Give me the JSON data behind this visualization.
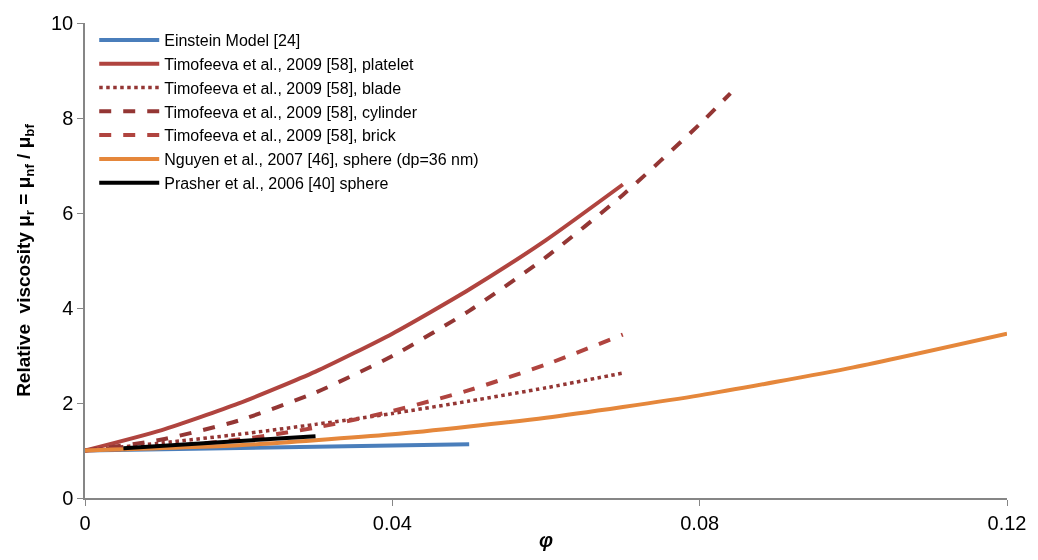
{
  "chart_data": {
    "type": "line",
    "xlabel": "φ",
    "ylabel": "Relative  viscosity μ$_{r}$ = μ$_{nf}$ / μ$_{bf}$",
    "xlim": [
      0,
      0.12
    ],
    "xticks": [
      0,
      0.04,
      0.08,
      0.12
    ],
    "ylim": [
      0,
      10
    ],
    "yticks": [
      0,
      2,
      4,
      6,
      8,
      10
    ],
    "legend": "top left",
    "marker": "none",
    "series": [
      {
        "name": "Einstein Model [24]",
        "color": "#4a7ebb",
        "line_style": "solid",
        "x": [
          0,
          0.05
        ],
        "values": [
          1,
          1.13
        ]
      },
      {
        "name": "Timofeeva et al., 2009 [58], platelet",
        "color": "#b0443f",
        "line_style": "solid",
        "x": [
          0,
          0.01,
          0.02,
          0.03,
          0.04,
          0.05,
          0.06,
          0.07
        ],
        "values": [
          1,
          1.43,
          1.99,
          2.66,
          3.46,
          4.39,
          5.43,
          6.6
        ]
      },
      {
        "name": "Timofeeva et al., 2009 [58], blade",
        "color": "#943634",
        "line_style": "dotted",
        "x": [
          0,
          0.01,
          0.02,
          0.03,
          0.04,
          0.05,
          0.06,
          0.07
        ],
        "values": [
          1,
          1.16,
          1.34,
          1.55,
          1.78,
          2.04,
          2.32,
          2.63
        ]
      },
      {
        "name": "Timofeeva et al., 2009 [58], cylinder",
        "color": "#943634",
        "line_style": "dashed",
        "x": [
          0,
          0.01,
          0.02,
          0.03,
          0.04,
          0.05,
          0.06,
          0.07,
          0.08,
          0.084
        ],
        "values": [
          1,
          1.23,
          1.63,
          2.22,
          2.99,
          3.94,
          5.07,
          6.38,
          7.87,
          8.52
        ]
      },
      {
        "name": "Timofeeva et al., 2009 [58], brick",
        "color": "#b0443f",
        "line_style": "dashed",
        "x": [
          0,
          0.01,
          0.02,
          0.03,
          0.04,
          0.05,
          0.06,
          0.07
        ],
        "values": [
          1,
          1.07,
          1.23,
          1.48,
          1.83,
          2.27,
          2.81,
          3.44
        ]
      },
      {
        "name": "Nguyen et al., 2007 [46], sphere (dp=36 nm)",
        "color": "#e5873b",
        "line_style": "solid",
        "x": [
          0,
          0.02,
          0.04,
          0.06,
          0.08,
          0.1,
          0.12
        ],
        "values": [
          1,
          1.11,
          1.34,
          1.69,
          2.16,
          2.75,
          3.46
        ]
      },
      {
        "name": "Prasher et al., 2006 [40] sphere",
        "color": "#000000",
        "line_style": "solid",
        "x": [
          0.005,
          0.03
        ],
        "values": [
          1.05,
          1.3
        ]
      }
    ]
  }
}
